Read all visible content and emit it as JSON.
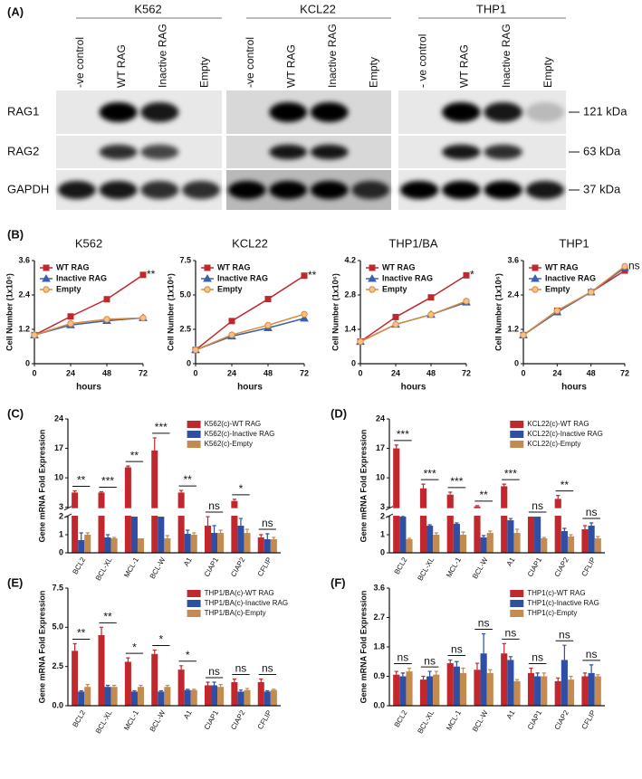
{
  "panel_a": {
    "label": "(A)",
    "cell_lines": [
      "K562",
      "KCL22",
      "THP1"
    ],
    "lanes": [
      [
        "-ve control",
        "WT RAG",
        "Inactive RAG",
        "Empty"
      ],
      [
        "-ve control",
        "WT RAG",
        "Inactive RAG",
        "Empty"
      ],
      [
        "- ve control",
        "WT RAG",
        "Inactive RAG",
        "Empty"
      ]
    ],
    "rows": [
      "RAG1",
      "RAG2",
      "GAPDH"
    ],
    "sizes": [
      "121 kDa",
      "63 kDa",
      "37 kDa"
    ]
  },
  "panel_labels": [
    "(B)",
    "(C)",
    "(D)",
    "(E)",
    "(F)"
  ],
  "chart_data": [
    {
      "type": "line",
      "title": "K562",
      "xlabel": "hours",
      "ylabel": "Cell Number (1x10⁶)",
      "x": [
        0,
        24,
        48,
        72
      ],
      "xlim": [
        0,
        72
      ],
      "xticks": [
        0,
        24,
        48,
        72
      ],
      "ylim": [
        0,
        3.6
      ],
      "yticks": [
        0,
        1.2,
        2.4,
        3.6
      ],
      "legend": "upper left",
      "annotation": "**",
      "series": [
        {
          "name": "WT RAG",
          "color": "#c0282d",
          "marker": "square",
          "values": [
            1,
            1.65,
            2.25,
            3.1
          ]
        },
        {
          "name": "Inactive RAG",
          "color": "#3a5fb0",
          "marker": "triangle",
          "values": [
            1,
            1.35,
            1.5,
            1.6
          ]
        },
        {
          "name": "Empty",
          "color": "#d98b3a",
          "marker": "circle",
          "values": [
            1,
            1.4,
            1.55,
            1.6
          ]
        }
      ]
    },
    {
      "type": "line",
      "title": "KCL22",
      "xlabel": "hours",
      "ylabel": "Cell Number (1x10⁶)",
      "x": [
        0,
        24,
        48,
        72
      ],
      "xlim": [
        0,
        72
      ],
      "xticks": [
        0,
        24,
        48,
        72
      ],
      "ylim": [
        0,
        7.5
      ],
      "yticks": [
        0,
        2.5,
        {
          "value": 5,
          "label": "5.0"
        },
        7.5
      ],
      "legend": "upper left",
      "annotation": "**",
      "series": [
        {
          "name": "WT RAG",
          "color": "#c0282d",
          "marker": "square",
          "values": [
            1,
            3.1,
            4.7,
            6.4
          ]
        },
        {
          "name": "Inactive RAG",
          "color": "#3a5fb0",
          "marker": "triangle",
          "values": [
            1,
            2.0,
            2.6,
            3.3
          ]
        },
        {
          "name": "Empty",
          "color": "#d98b3a",
          "marker": "circle",
          "values": [
            1,
            2.1,
            2.8,
            3.6
          ]
        }
      ]
    },
    {
      "type": "line",
      "title": "THP1/BA",
      "xlabel": "hours",
      "ylabel": "Cell Number (1x10⁶)",
      "x": [
        0,
        24,
        48,
        72
      ],
      "xlim": [
        0,
        72
      ],
      "xticks": [
        0,
        24,
        48,
        72
      ],
      "ylim": [
        0,
        4.2
      ],
      "yticks": [
        0,
        1.4,
        2.8,
        4.2
      ],
      "legend": "upper left",
      "annotation": "*",
      "series": [
        {
          "name": "WT RAG",
          "color": "#c0282d",
          "marker": "square",
          "values": [
            0.9,
            1.9,
            2.7,
            3.6
          ]
        },
        {
          "name": "Inactive RAG",
          "color": "#3a5fb0",
          "marker": "triangle",
          "values": [
            0.9,
            1.6,
            2.0,
            2.5
          ]
        },
        {
          "name": "Empty",
          "color": "#d98b3a",
          "marker": "circle",
          "values": [
            0.9,
            1.6,
            2.0,
            2.55
          ]
        }
      ]
    },
    {
      "type": "line",
      "title": "THP1",
      "xlabel": "hours",
      "ylabel": "Cell Number (1x10⁶)",
      "x": [
        0,
        24,
        48,
        72
      ],
      "xlim": [
        0,
        72
      ],
      "xticks": [
        0,
        24,
        48,
        72
      ],
      "ylim": [
        0,
        3.6
      ],
      "yticks": [
        0,
        1.2,
        2.4,
        3.6
      ],
      "legend": "upper left",
      "annotation": "ns",
      "series": [
        {
          "name": "WT RAG",
          "color": "#c0282d",
          "marker": "square",
          "values": [
            1,
            1.85,
            2.5,
            3.25
          ]
        },
        {
          "name": "Inactive RAG",
          "color": "#3a5fb0",
          "marker": "triangle",
          "values": [
            1,
            1.8,
            2.5,
            3.35
          ]
        },
        {
          "name": "Empty",
          "color": "#d98b3a",
          "marker": "circle",
          "values": [
            1,
            1.85,
            2.5,
            3.4
          ]
        }
      ]
    },
    {
      "type": "bar",
      "ylabel": "Gene mRNA Fold Expression",
      "categories": [
        "BCL2",
        "BCL-XL",
        "MCL-1",
        "BCL-W",
        "A1",
        "CIAP1",
        "CIAP2",
        "CFLIP"
      ],
      "ylim": [
        0,
        24
      ],
      "yticks": [
        0,
        1,
        2,
        3,
        10,
        17,
        24
      ],
      "ybreak": [
        2,
        3
      ],
      "legend": "upper right",
      "annotations": [
        "**",
        "***",
        "**",
        "***",
        "**",
        "ns",
        "*",
        "ns"
      ],
      "series": [
        {
          "name": "K562(c)-WT  RAG",
          "color": "#c1272d",
          "values": [
            6.5,
            6.5,
            12.5,
            16.5,
            6.5,
            1.5,
            4.5,
            0.85
          ],
          "errors": [
            0.4,
            0.2,
            0.3,
            3,
            0.5,
            0.5,
            0.4,
            0.15
          ]
        },
        {
          "name": "K562(c)-Inactive RAG",
          "color": "#2e4fa3",
          "values": [
            0.7,
            0.85,
            2,
            2,
            1.05,
            1.1,
            1.5,
            0.75
          ],
          "errors": [
            0.4,
            0.15,
            0,
            0,
            0.2,
            0.4,
            0.4,
            0.3
          ]
        },
        {
          "name": "K562(c)-Empty",
          "color": "#c38b4f",
          "values": [
            1.0,
            0.8,
            0.8,
            0.8,
            1.0,
            1.1,
            1.1,
            0.75
          ],
          "errors": [
            0.1,
            0.05,
            0,
            0.15,
            0.1,
            0.15,
            0.2,
            0.1
          ]
        }
      ]
    },
    {
      "type": "bar",
      "ylabel": "Gene mRNA Fold Expression",
      "categories": [
        "BCL2",
        "BCL-XL",
        "MCL-1",
        "BCL-W",
        "A1",
        "CIAP1",
        "CIAP2",
        "CFLIP"
      ],
      "ylim": [
        0,
        24
      ],
      "yticks": [
        0,
        1,
        2,
        3,
        10,
        17,
        24
      ],
      "ybreak": [
        2,
        3
      ],
      "legend": "upper right",
      "annotations": [
        "***",
        "***",
        "***",
        "**",
        "***",
        "ns",
        "**",
        "ns"
      ],
      "series": [
        {
          "name": "KCL22(c)-WT  RAG",
          "color": "#c1272d",
          "values": [
            17,
            7.5,
            6,
            3.2,
            8,
            2,
            5,
            1.3
          ],
          "errors": [
            0.8,
            1,
            0.6,
            0.2,
            0.5,
            0,
            0.8,
            0.2
          ]
        },
        {
          "name": "KCL22(c)-Inactive RAG",
          "color": "#2e4fa3",
          "values": [
            2,
            1.5,
            1.6,
            0.85,
            1.8,
            2,
            1.2,
            1.5
          ],
          "errors": [
            0.1,
            0.05,
            0.05,
            0.1,
            0.1,
            0,
            0.15,
            0.15
          ]
        },
        {
          "name": "KCL22(c)-Empty",
          "color": "#c38b4f",
          "values": [
            0.75,
            1.0,
            1.0,
            1.1,
            1.1,
            0.8,
            0.9,
            0.8
          ],
          "errors": [
            0.05,
            0.1,
            0.15,
            0.1,
            0.2,
            0.05,
            0.1,
            0.1
          ]
        }
      ]
    },
    {
      "type": "bar",
      "ylabel": "Gene mRNA Fold Expression",
      "categories": [
        "BCL2",
        "BCL-XL",
        "MCL-1",
        "BCL-W",
        "A1",
        "CIAP1",
        "CIAP2",
        "CFLIP"
      ],
      "ylim": [
        0,
        7.5
      ],
      "yticks": [
        {
          "value": 0,
          "label": "0.0"
        },
        2.5,
        {
          "value": 5,
          "label": "5.0"
        },
        7.5
      ],
      "legend": "upper right",
      "annotations": [
        "**",
        "**",
        "*",
        "*",
        "*",
        "ns",
        "ns",
        "ns"
      ],
      "series": [
        {
          "name": "THP1/BA(c)-WT RAG",
          "color": "#c1272d",
          "values": [
            3.5,
            4.5,
            2.8,
            3.3,
            2.3,
            1.3,
            1.5,
            1.5
          ],
          "errors": [
            0.45,
            0.5,
            0.25,
            0.25,
            0.25,
            0.2,
            0.2,
            0.2
          ]
        },
        {
          "name": "THP1/BA(c)-Inactive RAG",
          "color": "#2e4fa3",
          "values": [
            0.9,
            1.2,
            0.9,
            0.9,
            1.0,
            1.3,
            0.9,
            0.9
          ],
          "errors": [
            0.05,
            0.1,
            0.05,
            0.05,
            0.05,
            0.2,
            0.1,
            0.05
          ]
        },
        {
          "name": "THP1/BA(c)-Empty",
          "color": "#c38b4f",
          "values": [
            1.2,
            1.2,
            1.2,
            1.2,
            1.0,
            1.2,
            1.0,
            1.0
          ],
          "errors": [
            0.15,
            0.1,
            0.1,
            0.1,
            0.05,
            0.15,
            0.1,
            0.05
          ]
        }
      ]
    },
    {
      "type": "bar",
      "ylabel": "Gene mRNA Fold Expression",
      "categories": [
        "BCL2",
        "BCL-XL",
        "MCL-1",
        "BCL-W",
        "A1",
        "CIAP1",
        "CIAP2",
        "CFLIP"
      ],
      "ylim": [
        0,
        3.6
      ],
      "yticks": [
        {
          "value": 0,
          "label": "0.0"
        },
        0.9,
        1.8,
        2.7,
        3.6
      ],
      "legend": "upper right",
      "annotations": [
        "ns",
        "ns",
        "ns",
        "ns",
        "ns",
        "ns",
        "ns",
        "ns"
      ],
      "series": [
        {
          "name": "THP1(c)-WT RAG",
          "color": "#c1272d",
          "values": [
            0.95,
            0.8,
            1.3,
            1.1,
            1.6,
            1.0,
            0.75,
            0.9
          ],
          "errors": [
            0.1,
            0.1,
            0.1,
            0.2,
            0.3,
            0.15,
            0.1,
            0.1
          ]
        },
        {
          "name": "THP1(c)-Inactive RAG",
          "color": "#2e4fa3",
          "values": [
            0.9,
            0.9,
            1.2,
            1.6,
            1.4,
            0.9,
            1.4,
            1.0
          ],
          "errors": [
            0.1,
            0.15,
            0.15,
            0.6,
            0.1,
            0.1,
            0.45,
            0.25
          ]
        },
        {
          "name": "THP1(c)-Empty",
          "color": "#c38b4f",
          "values": [
            1.05,
            0.95,
            1.0,
            1.0,
            0.75,
            0.9,
            0.8,
            0.9
          ],
          "errors": [
            0.1,
            0.1,
            0.15,
            0.1,
            0.05,
            0.1,
            0.1,
            0.05
          ]
        }
      ]
    }
  ]
}
